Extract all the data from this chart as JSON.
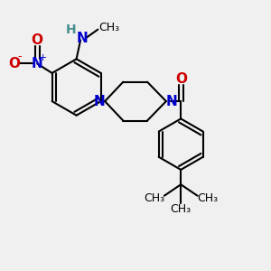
{
  "bg_color": "#f0f0f0",
  "bond_color": "#000000",
  "N_color": "#0000cc",
  "O_color": "#cc0000",
  "H_color": "#4a9090",
  "line_width": 1.5,
  "font_size_atoms": 11,
  "font_size_small": 9,
  "fig_w": 3.0,
  "fig_h": 3.0,
  "dpi": 100,
  "xlim": [
    0,
    10
  ],
  "ylim": [
    0,
    10
  ]
}
